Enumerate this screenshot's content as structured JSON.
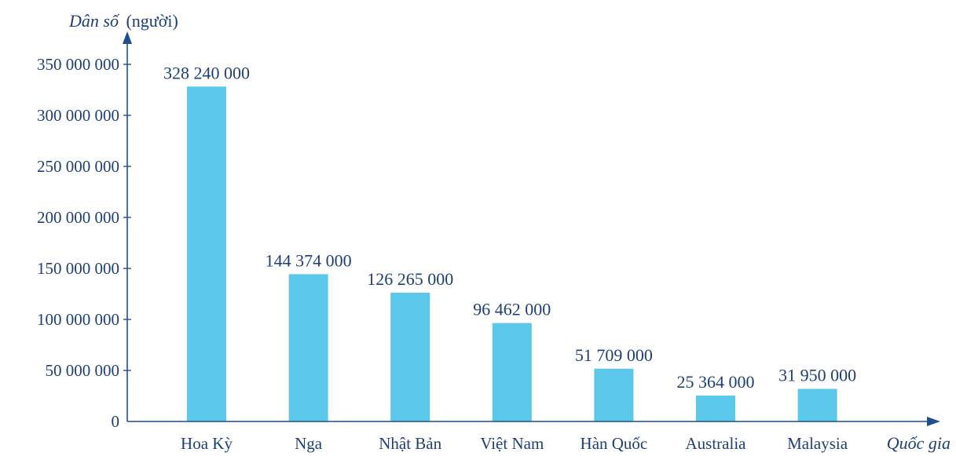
{
  "chart_data": {
    "type": "bar",
    "categories": [
      "Hoa Kỳ",
      "Nga",
      "Nhật Bản",
      "Việt Nam",
      "Hàn Quốc",
      "Australia",
      "Malaysia"
    ],
    "values": [
      328240000,
      144374000,
      126265000,
      96462000,
      51709000,
      25364000,
      31950000
    ],
    "value_labels": [
      "328 240 000",
      "144 374 000",
      "126 265 000",
      "96 462 000",
      "51 709 000",
      "25 364 000",
      "31 950 000"
    ],
    "y_ticks": [
      0,
      50000000,
      100000000,
      150000000,
      200000000,
      250000000,
      300000000,
      350000000
    ],
    "y_tick_labels": [
      "0",
      "50 000 000",
      "100 000 000",
      "150 000 000",
      "200 000 000",
      "250 000 000",
      "300 000 000",
      "350 000 000"
    ],
    "ylim": [
      0,
      350000000
    ],
    "ylabel_italic": "Dân số",
    "ylabel_unit": "(người)",
    "xlabel": "Quốc gia",
    "grid": false,
    "colors": {
      "bar": "#5bc8ea",
      "axis": "#1f4e8c",
      "text": "#1f3f73"
    }
  }
}
